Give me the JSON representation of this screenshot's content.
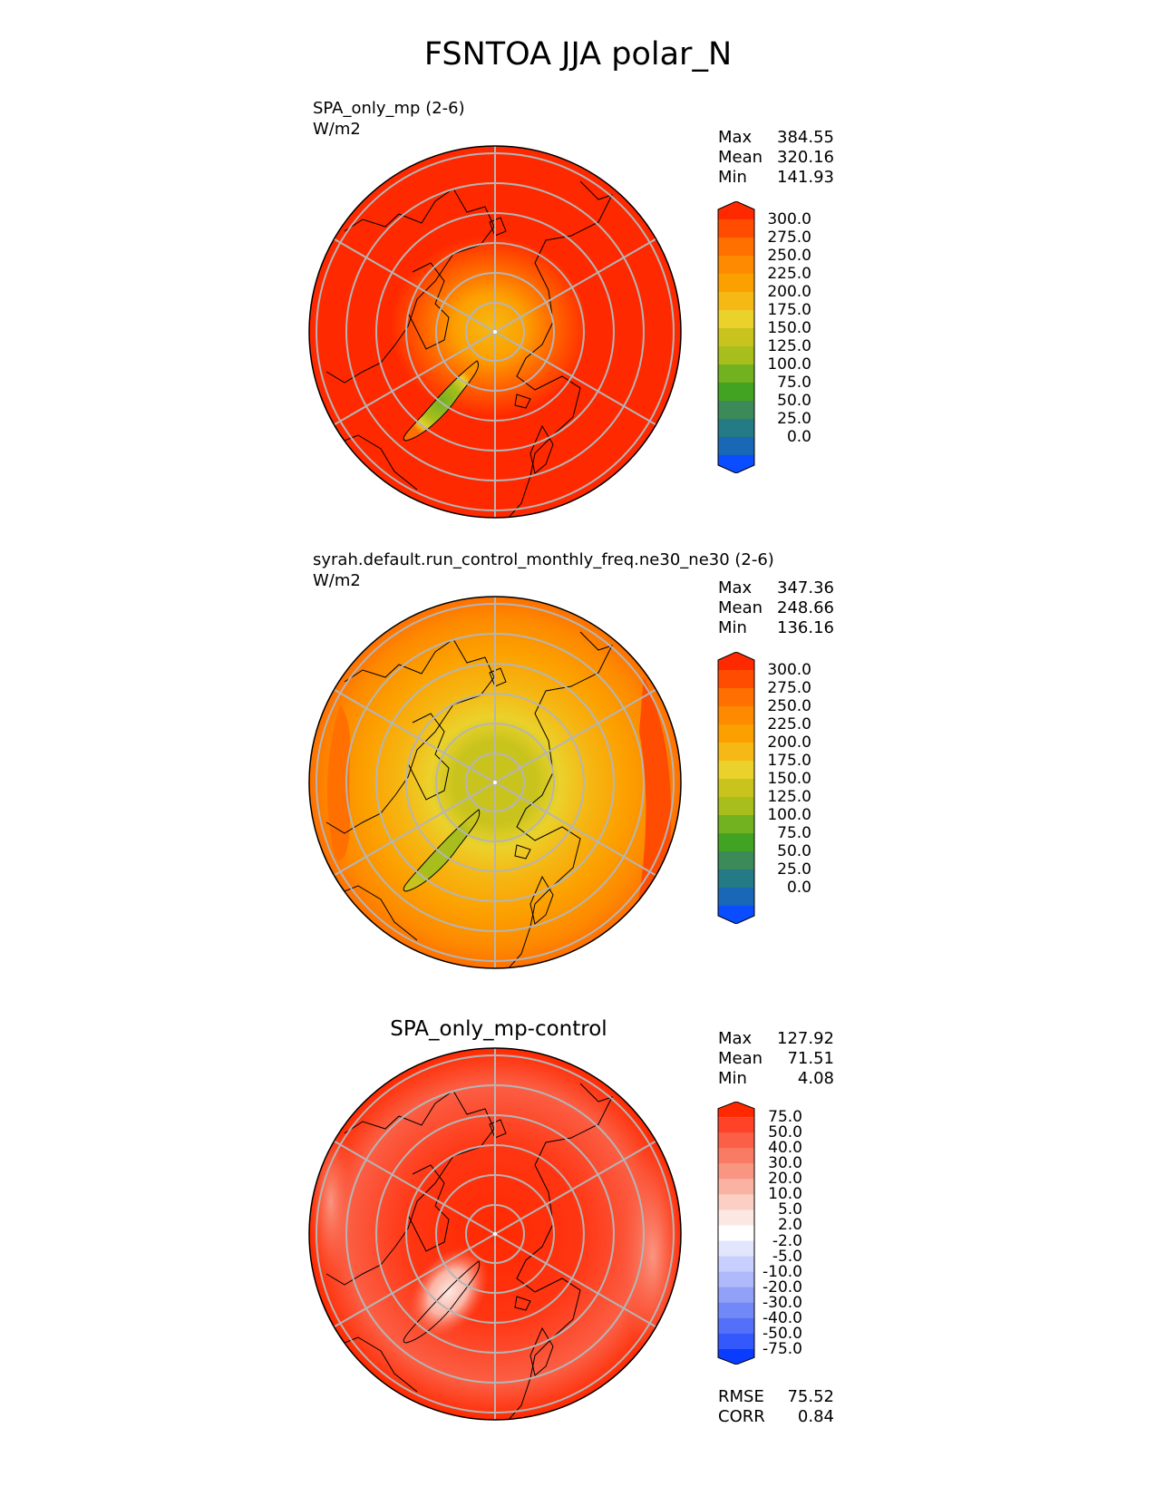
{
  "title": "FSNTOA JJA polar_N",
  "chart_data": [
    {
      "type": "heatmap",
      "projection": "north-polar-stereographic",
      "title": "SPA_only_mp (2-6)",
      "units": "W/m2",
      "stats": {
        "max_label": "Max",
        "max": "384.55",
        "mean_label": "Mean",
        "mean": "320.16",
        "min_label": "Min",
        "min": "141.93"
      },
      "levels": [
        "300.0",
        "275.0",
        "250.0",
        "225.0",
        "200.0",
        "175.0",
        "150.0",
        "125.0",
        "100.0",
        "75.0",
        "50.0",
        "25.0",
        "0.0"
      ],
      "colors": [
        "#ff2900",
        "#ff4c00",
        "#ff7000",
        "#fd8a00",
        "#fca000",
        "#f5b814",
        "#ebd12b",
        "#c9c41d",
        "#a7be1d",
        "#72b11f",
        "#42a322",
        "#3c8a58",
        "#247a85",
        "#1968b5",
        "#0a4cff"
      ],
      "regional_pattern": {
        "ocean_and_midlatitudes": "300+",
        "polar_cap": "175-275",
        "greenland": "100-175"
      }
    },
    {
      "type": "heatmap",
      "projection": "north-polar-stereographic",
      "title": "syrah.default.run_control_monthly_freq.ne30_ne30 (2-6)",
      "units": "W/m2",
      "stats": {
        "max_label": "Max",
        "max": "347.36",
        "mean_label": "Mean",
        "mean": "248.66",
        "min_label": "Min",
        "min": "136.16"
      },
      "levels": [
        "300.0",
        "275.0",
        "250.0",
        "225.0",
        "200.0",
        "175.0",
        "150.0",
        "125.0",
        "100.0",
        "75.0",
        "50.0",
        "25.0",
        "0.0"
      ],
      "colors": [
        "#ff2900",
        "#ff4c00",
        "#ff7000",
        "#fd8a00",
        "#fca000",
        "#f5b814",
        "#ebd12b",
        "#c9c41d",
        "#a7be1d",
        "#72b11f",
        "#42a322",
        "#3c8a58",
        "#247a85",
        "#1968b5",
        "#0a4cff"
      ],
      "regional_pattern": {
        "midlatitudes": "225-275",
        "arctic": "150-200",
        "greenland": "125-175"
      }
    },
    {
      "type": "heatmap",
      "projection": "north-polar-stereographic",
      "title": "SPA_only_mp-control",
      "stats": {
        "max_label": "Max",
        "max": "127.92",
        "mean_label": "Mean",
        "mean": "71.51",
        "min_label": "Min",
        "min": "4.08"
      },
      "levels": [
        "75.0",
        "50.0",
        "40.0",
        "30.0",
        "20.0",
        "10.0",
        "5.0",
        "2.0",
        "-2.0",
        "-5.0",
        "-10.0",
        "-20.0",
        "-30.0",
        "-40.0",
        "-50.0",
        "-75.0"
      ],
      "colors": [
        "#ff2900",
        "#ff4228",
        "#fb5f45",
        "#fa7b63",
        "#f99682",
        "#fab3a3",
        "#fccfc5",
        "#fde7e2",
        "#ffffff",
        "#e2e6fd",
        "#c8cffc",
        "#aebaf9",
        "#91a1f8",
        "#7388f7",
        "#5570f8",
        "#3358fb",
        "#0a3cff"
      ],
      "metrics": {
        "rmse_label": "RMSE",
        "rmse": "75.52",
        "corr_label": "CORR",
        "corr": "0.84"
      }
    }
  ]
}
